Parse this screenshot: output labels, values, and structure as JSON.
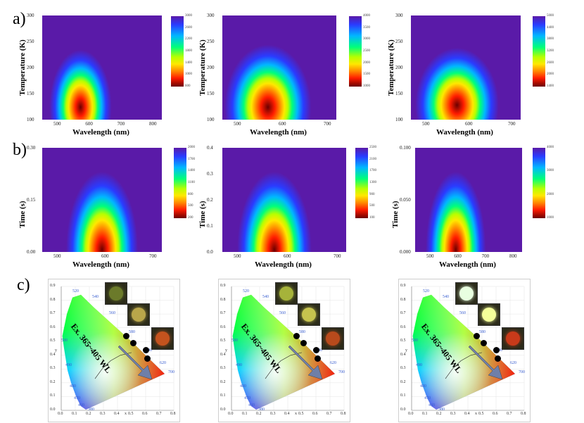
{
  "row_labels": [
    "a)",
    "b)",
    "c)"
  ],
  "row_a": {
    "panels": [
      {
        "xlabel": "Wavelength (nm)",
        "ylabel": "Temperature (K)",
        "xticks": [
          "500",
          "600",
          "700",
          "800"
        ],
        "yticks": [
          "300",
          "250",
          "200",
          "150",
          "100"
        ],
        "cbar_ticks": [
          "3000",
          "2600",
          "2200",
          "1800",
          "1400",
          "1000",
          "600"
        ]
      },
      {
        "xlabel": "Wavelength (nm)",
        "ylabel": "Temperature (K)",
        "xticks": [
          "500",
          "600",
          "700"
        ],
        "yticks": [
          "300",
          "250",
          "200",
          "150",
          "100"
        ],
        "cbar_ticks": [
          "4000",
          "3500",
          "3000",
          "2500",
          "2000",
          "1500",
          "1000"
        ]
      },
      {
        "xlabel": "Wavelength (nm)",
        "ylabel": "Temperature (K)",
        "xticks": [
          "500",
          "600",
          "700"
        ],
        "yticks": [
          "300",
          "250",
          "200",
          "150",
          "100"
        ],
        "cbar_ticks": [
          "5000",
          "4400",
          "3800",
          "3200",
          "2600",
          "2000",
          "1400"
        ]
      }
    ]
  },
  "row_b": {
    "panels": [
      {
        "xlabel": "Wavelength (nm)",
        "ylabel": "Time (s)",
        "xticks": [
          "500",
          "600",
          "700"
        ],
        "yticks": [
          "0.30",
          "0.15",
          "0.00"
        ],
        "cbar_ticks": [
          "2000",
          "1700",
          "1400",
          "1100",
          "800",
          "500",
          "200"
        ]
      },
      {
        "xlabel": "Wavelength (nm)",
        "ylabel": "Time (s)",
        "xticks": [
          "500",
          "600",
          "700"
        ],
        "yticks": [
          "0.4",
          "0.3",
          "0.2",
          "0.1",
          "0.0"
        ],
        "cbar_ticks": [
          "2500",
          "2100",
          "1700",
          "1300",
          "900",
          "500",
          "100"
        ]
      },
      {
        "xlabel": "Wavelength (nm)",
        "ylabel": "Time (s)",
        "xticks": [
          "500",
          "600",
          "700",
          "800"
        ],
        "yticks": [
          "0.100",
          "0.050",
          "0.000"
        ],
        "cbar_ticks": [
          "4000",
          "3000",
          "2000",
          "1000"
        ]
      }
    ]
  },
  "row_c": {
    "annotation": "Ex. 365~405 WL",
    "xticks": [
      "0.0",
      "0.1",
      "0.2",
      "0.3",
      "0.4",
      "0.5",
      "0.6",
      "0.7",
      "0.8"
    ],
    "yticks": [
      "0.0",
      "0.1",
      "0.2",
      "0.3",
      "0.4",
      "0.5",
      "0.6",
      "0.7",
      "0.8",
      "0.9"
    ],
    "x_axis_label": "x",
    "y_axis_label": "y",
    "wavelength_labels": [
      "380",
      "460",
      "470",
      "480",
      "490",
      "500",
      "520",
      "540",
      "560",
      "580",
      "600",
      "620",
      "700"
    ],
    "panels": [
      {
        "inset_colors": [
          "#6b7a2a",
          "#b9a64a",
          "#c4531e"
        ]
      },
      {
        "inset_colors": [
          "#a6b33a",
          "#c6c34e",
          "#b84a1c"
        ]
      },
      {
        "inset_colors": [
          "#e8ffe0",
          "#f4ff9a",
          "#c83a1a"
        ]
      }
    ]
  }
}
